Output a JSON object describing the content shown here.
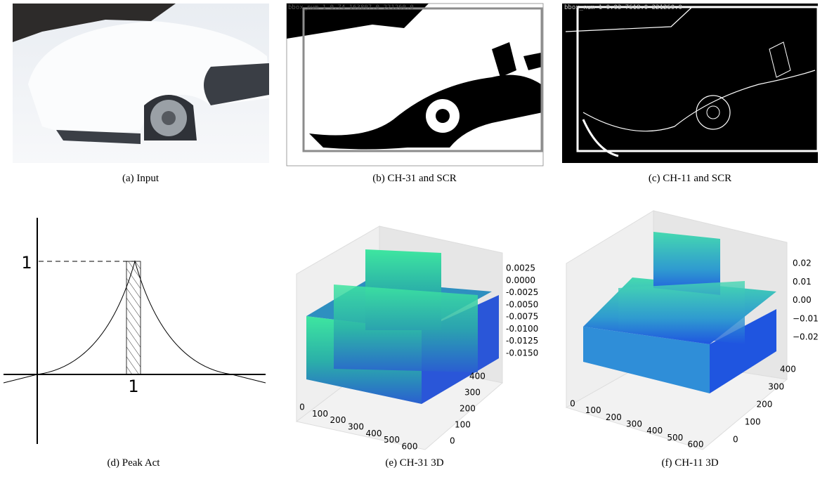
{
  "panels": [
    {
      "caption": "(a) Input"
    },
    {
      "caption": "(b) CH-31 and SCR",
      "overlay": "bbox_num 1 0.74 163807.0 221260.0"
    },
    {
      "caption": "(c) CH-11 and SCR",
      "overlay": "bbox_num 1 0.03 7618.0 221260.0"
    },
    {
      "caption": "(d) Peak Act",
      "y_label": "1",
      "x_label": "1"
    },
    {
      "caption": "(e) CH-31 3D",
      "z_ticks": [
        "0.0025",
        "0.0000",
        "-0.0025",
        "-0.0050",
        "-0.0075",
        "-0.0100",
        "-0.0125",
        "-0.0150"
      ],
      "x_ticks": [
        "0",
        "100",
        "200",
        "300",
        "400",
        "500",
        "600"
      ],
      "y_ticks": [
        "0",
        "100",
        "200",
        "300",
        "400"
      ]
    },
    {
      "caption": "(f) CH-11 3D",
      "z_ticks": [
        "0.02",
        "0.01",
        "0.00",
        "−0.01",
        "−0.02"
      ],
      "x_ticks": [
        "0",
        "100",
        "200",
        "300",
        "400",
        "500",
        "600"
      ],
      "y_ticks": [
        "0",
        "100",
        "200",
        "300",
        "400"
      ]
    }
  ]
}
